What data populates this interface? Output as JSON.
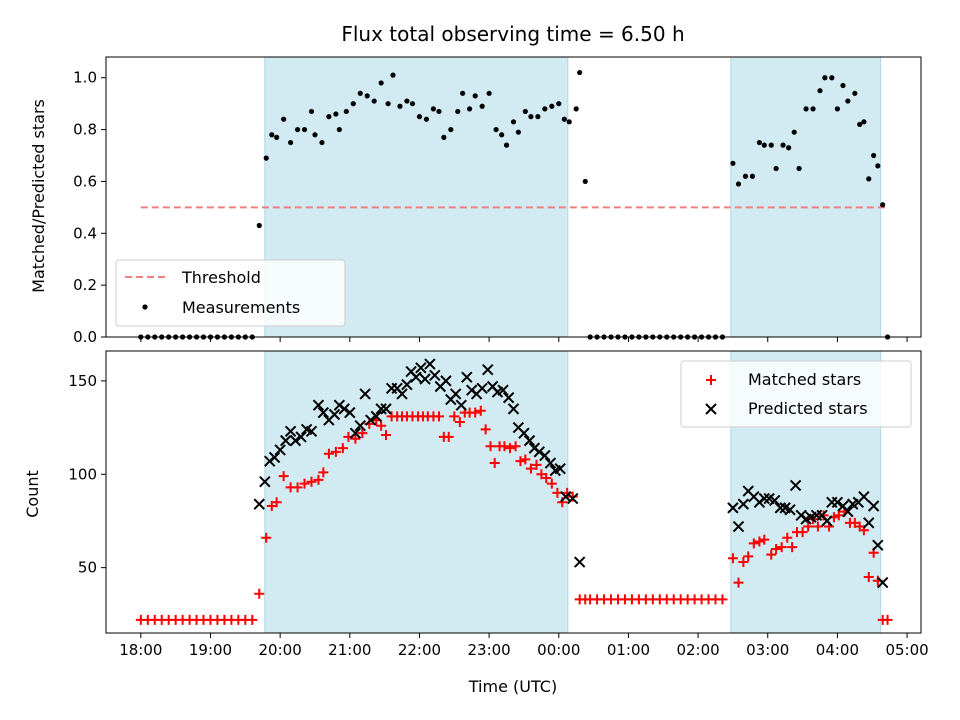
{
  "chart_data": {
    "title": "Flux total observing time = 6.50 h",
    "colors": {
      "shade": "#add8e6",
      "threshold": "#f08080",
      "measurements": "#000000",
      "matched": "#ff0000",
      "predicted": "#000000"
    },
    "x_axis": {
      "label": "Time (UTC)",
      "unit": "hours since 18:00",
      "range": [
        -0.5,
        11.2
      ],
      "ticks": [
        {
          "x": 0,
          "label": "18:00"
        },
        {
          "x": 1,
          "label": "19:00"
        },
        {
          "x": 2,
          "label": "20:00"
        },
        {
          "x": 3,
          "label": "21:00"
        },
        {
          "x": 4,
          "label": "22:00"
        },
        {
          "x": 5,
          "label": "23:00"
        },
        {
          "x": 6,
          "label": "00:00"
        },
        {
          "x": 7,
          "label": "01:00"
        },
        {
          "x": 8,
          "label": "02:00"
        },
        {
          "x": 9,
          "label": "03:00"
        },
        {
          "x": 10,
          "label": "04:00"
        },
        {
          "x": 11,
          "label": "05:00"
        }
      ]
    },
    "shaded_spans": [
      [
        1.78,
        6.13
      ],
      [
        8.47,
        10.62
      ]
    ],
    "top": {
      "type": "scatter",
      "ylabel": "Matched/Predicted stars",
      "ylim": [
        0,
        1.08
      ],
      "yticks": [
        {
          "y": 0.0,
          "label": "0.0"
        },
        {
          "y": 0.2,
          "label": "0.2"
        },
        {
          "y": 0.4,
          "label": "0.4"
        },
        {
          "y": 0.6,
          "label": "0.6"
        },
        {
          "y": 0.8,
          "label": "0.8"
        },
        {
          "y": 1.0,
          "label": "1.0"
        }
      ],
      "threshold": {
        "name": "Threshold",
        "y": 0.5,
        "x": [
          0.0,
          10.7
        ]
      },
      "legend": {
        "position": "lower-left",
        "entries": [
          "Threshold",
          "Measurements"
        ]
      },
      "measurements_name": "Measurements",
      "measurements": [
        [
          0.0,
          0.0
        ],
        [
          0.1,
          0.0
        ],
        [
          0.2,
          0.0
        ],
        [
          0.3,
          0.0
        ],
        [
          0.4,
          0.0
        ],
        [
          0.5,
          0.0
        ],
        [
          0.6,
          0.0
        ],
        [
          0.7,
          0.0
        ],
        [
          0.8,
          0.0
        ],
        [
          0.9,
          0.0
        ],
        [
          1.0,
          0.0
        ],
        [
          1.1,
          0.0
        ],
        [
          1.2,
          0.0
        ],
        [
          1.3,
          0.0
        ],
        [
          1.4,
          0.0
        ],
        [
          1.5,
          0.0
        ],
        [
          1.6,
          0.0
        ],
        [
          1.7,
          0.43
        ],
        [
          1.8,
          0.69
        ],
        [
          1.88,
          0.78
        ],
        [
          1.95,
          0.77
        ],
        [
          2.05,
          0.84
        ],
        [
          2.15,
          0.75
        ],
        [
          2.25,
          0.8
        ],
        [
          2.35,
          0.8
        ],
        [
          2.45,
          0.87
        ],
        [
          2.5,
          0.78
        ],
        [
          2.6,
          0.75
        ],
        [
          2.7,
          0.85
        ],
        [
          2.8,
          0.86
        ],
        [
          2.85,
          0.8
        ],
        [
          2.95,
          0.87
        ],
        [
          3.05,
          0.9
        ],
        [
          3.15,
          0.94
        ],
        [
          3.25,
          0.93
        ],
        [
          3.35,
          0.91
        ],
        [
          3.45,
          0.98
        ],
        [
          3.55,
          0.9
        ],
        [
          3.62,
          1.01
        ],
        [
          3.72,
          0.89
        ],
        [
          3.82,
          0.91
        ],
        [
          3.9,
          0.9
        ],
        [
          4.0,
          0.85
        ],
        [
          4.1,
          0.84
        ],
        [
          4.2,
          0.88
        ],
        [
          4.28,
          0.87
        ],
        [
          4.35,
          0.77
        ],
        [
          4.45,
          0.8
        ],
        [
          4.55,
          0.87
        ],
        [
          4.62,
          0.94
        ],
        [
          4.72,
          0.88
        ],
        [
          4.8,
          0.93
        ],
        [
          4.9,
          0.89
        ],
        [
          5.0,
          0.94
        ],
        [
          5.1,
          0.8
        ],
        [
          5.18,
          0.78
        ],
        [
          5.25,
          0.74
        ],
        [
          5.35,
          0.83
        ],
        [
          5.42,
          0.79
        ],
        [
          5.52,
          0.87
        ],
        [
          5.6,
          0.85
        ],
        [
          5.7,
          0.85
        ],
        [
          5.8,
          0.88
        ],
        [
          5.9,
          0.89
        ],
        [
          6.0,
          0.9
        ],
        [
          6.08,
          0.84
        ],
        [
          6.15,
          0.83
        ],
        [
          6.25,
          0.88
        ],
        [
          6.3,
          1.02
        ],
        [
          6.38,
          0.6
        ],
        [
          6.45,
          0.0
        ],
        [
          6.55,
          0.0
        ],
        [
          6.65,
          0.0
        ],
        [
          6.75,
          0.0
        ],
        [
          6.85,
          0.0
        ],
        [
          6.95,
          0.0
        ],
        [
          7.05,
          0.0
        ],
        [
          7.15,
          0.0
        ],
        [
          7.25,
          0.0
        ],
        [
          7.35,
          0.0
        ],
        [
          7.45,
          0.0
        ],
        [
          7.55,
          0.0
        ],
        [
          7.65,
          0.0
        ],
        [
          7.75,
          0.0
        ],
        [
          7.85,
          0.0
        ],
        [
          7.95,
          0.0
        ],
        [
          8.05,
          0.0
        ],
        [
          8.15,
          0.0
        ],
        [
          8.25,
          0.0
        ],
        [
          8.35,
          0.0
        ],
        [
          8.5,
          0.67
        ],
        [
          8.58,
          0.59
        ],
        [
          8.68,
          0.62
        ],
        [
          8.78,
          0.62
        ],
        [
          8.88,
          0.75
        ],
        [
          8.95,
          0.74
        ],
        [
          9.05,
          0.74
        ],
        [
          9.12,
          0.65
        ],
        [
          9.22,
          0.74
        ],
        [
          9.3,
          0.73
        ],
        [
          9.38,
          0.79
        ],
        [
          9.45,
          0.65
        ],
        [
          9.55,
          0.88
        ],
        [
          9.65,
          0.88
        ],
        [
          9.75,
          0.95
        ],
        [
          9.82,
          1.0
        ],
        [
          9.92,
          1.0
        ],
        [
          10.0,
          0.88
        ],
        [
          10.08,
          0.97
        ],
        [
          10.15,
          0.91
        ],
        [
          10.25,
          0.94
        ],
        [
          10.32,
          0.82
        ],
        [
          10.38,
          0.83
        ],
        [
          10.45,
          0.61
        ],
        [
          10.52,
          0.7
        ],
        [
          10.58,
          0.66
        ],
        [
          10.65,
          0.51
        ],
        [
          10.72,
          0.0
        ]
      ]
    },
    "bottom": {
      "type": "scatter",
      "ylabel": "Count",
      "ylim": [
        15,
        166
      ],
      "yticks": [
        {
          "y": 50,
          "label": "50"
        },
        {
          "y": 100,
          "label": "100"
        },
        {
          "y": 150,
          "label": "150"
        }
      ],
      "legend": {
        "position": "upper-right",
        "entries": [
          "Matched stars",
          "Predicted stars"
        ]
      },
      "matched_name": "Matched stars",
      "predicted_name": "Predicted stars",
      "matched": [
        [
          0.0,
          22
        ],
        [
          0.1,
          22
        ],
        [
          0.2,
          22
        ],
        [
          0.3,
          22
        ],
        [
          0.4,
          22
        ],
        [
          0.5,
          22
        ],
        [
          0.6,
          22
        ],
        [
          0.7,
          22
        ],
        [
          0.8,
          22
        ],
        [
          0.9,
          22
        ],
        [
          1.0,
          22
        ],
        [
          1.1,
          22
        ],
        [
          1.2,
          22
        ],
        [
          1.3,
          22
        ],
        [
          1.4,
          22
        ],
        [
          1.5,
          22
        ],
        [
          1.6,
          22
        ],
        [
          1.7,
          36
        ],
        [
          1.8,
          66
        ],
        [
          1.88,
          83
        ],
        [
          1.95,
          85
        ],
        [
          2.05,
          99
        ],
        [
          2.15,
          93
        ],
        [
          2.25,
          93
        ],
        [
          2.35,
          95
        ],
        [
          2.45,
          96
        ],
        [
          2.55,
          97
        ],
        [
          2.62,
          101
        ],
        [
          2.7,
          111
        ],
        [
          2.8,
          112
        ],
        [
          2.9,
          114
        ],
        [
          2.98,
          120
        ],
        [
          3.08,
          119
        ],
        [
          3.18,
          122
        ],
        [
          3.28,
          127
        ],
        [
          3.38,
          129
        ],
        [
          3.45,
          126
        ],
        [
          3.52,
          121
        ],
        [
          3.6,
          131
        ],
        [
          3.68,
          131
        ],
        [
          3.75,
          131
        ],
        [
          3.82,
          131
        ],
        [
          3.9,
          131
        ],
        [
          3.98,
          131
        ],
        [
          4.05,
          131
        ],
        [
          4.12,
          131
        ],
        [
          4.2,
          131
        ],
        [
          4.28,
          131
        ],
        [
          4.35,
          120
        ],
        [
          4.42,
          120
        ],
        [
          4.5,
          131
        ],
        [
          4.58,
          128
        ],
        [
          4.65,
          133
        ],
        [
          4.72,
          133
        ],
        [
          4.8,
          133
        ],
        [
          4.88,
          134
        ],
        [
          4.95,
          124
        ],
        [
          5.02,
          115
        ],
        [
          5.08,
          106
        ],
        [
          5.15,
          115
        ],
        [
          5.22,
          115
        ],
        [
          5.3,
          114
        ],
        [
          5.38,
          115
        ],
        [
          5.45,
          107
        ],
        [
          5.52,
          108
        ],
        [
          5.6,
          103
        ],
        [
          5.68,
          105
        ],
        [
          5.75,
          100
        ],
        [
          5.82,
          98
        ],
        [
          5.9,
          95
        ],
        [
          5.98,
          90
        ],
        [
          6.05,
          85
        ],
        [
          6.12,
          90
        ],
        [
          6.2,
          88
        ],
        [
          6.3,
          33
        ],
        [
          6.38,
          33
        ],
        [
          6.45,
          33
        ],
        [
          6.55,
          33
        ],
        [
          6.65,
          33
        ],
        [
          6.75,
          33
        ],
        [
          6.85,
          33
        ],
        [
          6.95,
          33
        ],
        [
          7.05,
          33
        ],
        [
          7.15,
          33
        ],
        [
          7.25,
          33
        ],
        [
          7.35,
          33
        ],
        [
          7.45,
          33
        ],
        [
          7.55,
          33
        ],
        [
          7.65,
          33
        ],
        [
          7.75,
          33
        ],
        [
          7.85,
          33
        ],
        [
          7.95,
          33
        ],
        [
          8.05,
          33
        ],
        [
          8.15,
          33
        ],
        [
          8.25,
          33
        ],
        [
          8.35,
          33
        ],
        [
          8.5,
          55
        ],
        [
          8.58,
          42
        ],
        [
          8.65,
          53
        ],
        [
          8.72,
          56
        ],
        [
          8.8,
          63
        ],
        [
          8.88,
          64
        ],
        [
          8.95,
          65
        ],
        [
          9.05,
          57
        ],
        [
          9.12,
          60
        ],
        [
          9.2,
          61
        ],
        [
          9.28,
          66
        ],
        [
          9.35,
          61
        ],
        [
          9.42,
          69
        ],
        [
          9.5,
          69
        ],
        [
          9.58,
          72
        ],
        [
          9.65,
          76
        ],
        [
          9.72,
          72
        ],
        [
          9.8,
          78
        ],
        [
          9.88,
          72
        ],
        [
          9.95,
          77
        ],
        [
          10.02,
          78
        ],
        [
          10.1,
          80
        ],
        [
          10.18,
          74
        ],
        [
          10.25,
          74
        ],
        [
          10.32,
          72
        ],
        [
          10.38,
          70
        ],
        [
          10.45,
          45
        ],
        [
          10.52,
          58
        ],
        [
          10.58,
          43
        ],
        [
          10.65,
          22
        ],
        [
          10.72,
          22
        ]
      ],
      "predicted": [
        [
          1.7,
          84
        ],
        [
          1.78,
          96
        ],
        [
          1.85,
          107
        ],
        [
          1.92,
          109
        ],
        [
          2.0,
          113
        ],
        [
          2.08,
          118
        ],
        [
          2.15,
          123
        ],
        [
          2.22,
          118
        ],
        [
          2.3,
          120
        ],
        [
          2.38,
          124
        ],
        [
          2.45,
          123
        ],
        [
          2.55,
          137
        ],
        [
          2.62,
          133
        ],
        [
          2.7,
          129
        ],
        [
          2.78,
          132
        ],
        [
          2.85,
          137
        ],
        [
          2.92,
          135
        ],
        [
          3.0,
          133
        ],
        [
          3.08,
          122
        ],
        [
          3.15,
          126
        ],
        [
          3.22,
          143
        ],
        [
          3.3,
          129
        ],
        [
          3.38,
          131
        ],
        [
          3.45,
          135
        ],
        [
          3.52,
          135
        ],
        [
          3.6,
          146
        ],
        [
          3.68,
          146
        ],
        [
          3.75,
          143
        ],
        [
          3.82,
          148
        ],
        [
          3.88,
          155
        ],
        [
          3.95,
          152
        ],
        [
          4.02,
          157
        ],
        [
          4.08,
          151
        ],
        [
          4.15,
          159
        ],
        [
          4.22,
          153
        ],
        [
          4.3,
          147
        ],
        [
          4.38,
          150
        ],
        [
          4.45,
          140
        ],
        [
          4.52,
          143
        ],
        [
          4.6,
          137
        ],
        [
          4.68,
          152
        ],
        [
          4.75,
          145
        ],
        [
          4.82,
          143
        ],
        [
          4.9,
          146
        ],
        [
          4.98,
          156
        ],
        [
          5.05,
          147
        ],
        [
          5.12,
          144
        ],
        [
          5.2,
          145
        ],
        [
          5.28,
          141
        ],
        [
          5.35,
          135
        ],
        [
          5.42,
          125
        ],
        [
          5.5,
          122
        ],
        [
          5.58,
          118
        ],
        [
          5.65,
          114
        ],
        [
          5.72,
          112
        ],
        [
          5.8,
          110
        ],
        [
          5.88,
          106
        ],
        [
          5.95,
          102
        ],
        [
          6.02,
          103
        ],
        [
          6.1,
          88
        ],
        [
          6.2,
          87
        ],
        [
          6.3,
          53
        ],
        [
          8.5,
          82
        ],
        [
          8.58,
          72
        ],
        [
          8.65,
          84
        ],
        [
          8.72,
          91
        ],
        [
          8.8,
          88
        ],
        [
          8.88,
          85
        ],
        [
          8.95,
          87
        ],
        [
          9.02,
          87
        ],
        [
          9.1,
          86
        ],
        [
          9.18,
          82
        ],
        [
          9.25,
          82
        ],
        [
          9.32,
          81
        ],
        [
          9.4,
          94
        ],
        [
          9.48,
          78
        ],
        [
          9.55,
          76
        ],
        [
          9.62,
          77
        ],
        [
          9.7,
          78
        ],
        [
          9.78,
          78
        ],
        [
          9.85,
          75
        ],
        [
          9.92,
          85
        ],
        [
          10.0,
          85
        ],
        [
          10.08,
          83
        ],
        [
          10.15,
          80
        ],
        [
          10.22,
          84
        ],
        [
          10.3,
          85
        ],
        [
          10.38,
          88
        ],
        [
          10.45,
          74
        ],
        [
          10.52,
          83
        ],
        [
          10.58,
          62
        ],
        [
          10.65,
          42
        ]
      ]
    }
  }
}
